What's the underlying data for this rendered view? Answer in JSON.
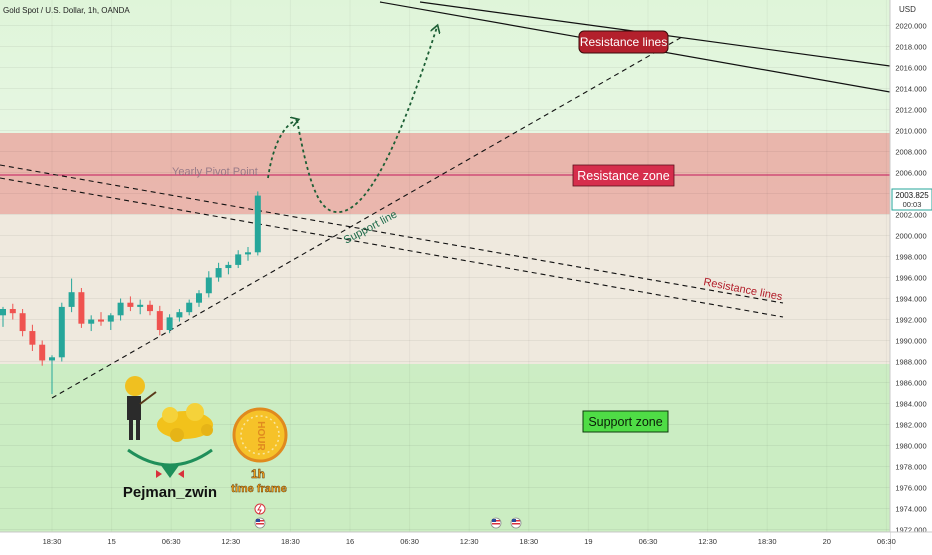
{
  "header": {
    "symbol_title": "Gold Spot / U.S. Dollar, 1h, OANDA",
    "currency": "USD"
  },
  "price_label": {
    "price": "2003.825",
    "countdown": "00:03"
  },
  "colors": {
    "bull": "#26a69a",
    "bear": "#ef5350",
    "resistance_zone": "#e9a49c",
    "support_zone": "#c9ecc0",
    "pivot_line": "#c2185b",
    "resistance_badge": "#b3202c",
    "support_badge": "#4fdc46",
    "forecast_arrow": "#1b5e34"
  },
  "chart_data": {
    "type": "candlestick",
    "title": "Gold Spot / U.S. Dollar, 1h, OANDA",
    "y_unit": "USD",
    "ylim": [
      1972,
      2022
    ],
    "y_ticks": [
      2020,
      2018,
      2016,
      2014,
      2012,
      2010,
      2008,
      2006,
      2004,
      2002,
      2000,
      1998,
      1996,
      1994,
      1992,
      1990,
      1988,
      1986,
      1984,
      1982,
      1980,
      1978,
      1976,
      1974,
      1972
    ],
    "y_tick_labels": [
      "2020.000",
      "2018.000",
      "2016.000",
      "2014.000",
      "2012.000",
      "2010.000",
      "2008.000",
      "2006.000",
      "2004.000",
      "2002.000",
      "2000.000",
      "1998.000",
      "1996.000",
      "1994.000",
      "1992.000",
      "1990.000",
      "1988.000",
      "1986.000",
      "1984.000",
      "1982.000",
      "1980.000",
      "1978.000",
      "1976.000",
      "1974.000",
      "1972.000"
    ],
    "x_ticks": [
      "18:30",
      "15",
      "06:30",
      "12:30",
      "18:30",
      "16",
      "06:30",
      "12:30",
      "18:30",
      "19",
      "06:30",
      "12:30",
      "18:30",
      "20",
      "06:30"
    ],
    "grid": true,
    "last_price": 2003.825,
    "candles": [
      {
        "o": 1992.4,
        "h": 1993.2,
        "l": 1991.3,
        "c": 1993.0
      },
      {
        "o": 1993.0,
        "h": 1993.5,
        "l": 1992.0,
        "c": 1992.6
      },
      {
        "o": 1992.6,
        "h": 1993.0,
        "l": 1990.4,
        "c": 1990.9
      },
      {
        "o": 1990.9,
        "h": 1991.5,
        "l": 1989.0,
        "c": 1989.6
      },
      {
        "o": 1989.6,
        "h": 1990.0,
        "l": 1987.6,
        "c": 1988.1
      },
      {
        "o": 1988.1,
        "h": 1988.6,
        "l": 1984.9,
        "c": 1988.4
      },
      {
        "o": 1988.4,
        "h": 1993.6,
        "l": 1988.0,
        "c": 1993.2
      },
      {
        "o": 1993.2,
        "h": 1995.9,
        "l": 1992.7,
        "c": 1994.6
      },
      {
        "o": 1994.6,
        "h": 1995.0,
        "l": 1991.2,
        "c": 1991.6
      },
      {
        "o": 1991.6,
        "h": 1992.4,
        "l": 1990.9,
        "c": 1992.0
      },
      {
        "o": 1992.0,
        "h": 1992.7,
        "l": 1991.4,
        "c": 1991.8
      },
      {
        "o": 1991.8,
        "h": 1992.6,
        "l": 1991.0,
        "c": 1992.4
      },
      {
        "o": 1992.4,
        "h": 1994.0,
        "l": 1991.9,
        "c": 1993.6
      },
      {
        "o": 1993.6,
        "h": 1994.2,
        "l": 1992.8,
        "c": 1993.2
      },
      {
        "o": 1993.2,
        "h": 1993.9,
        "l": 1992.5,
        "c": 1993.4
      },
      {
        "o": 1993.4,
        "h": 1993.8,
        "l": 1992.4,
        "c": 1992.8
      },
      {
        "o": 1992.8,
        "h": 1993.3,
        "l": 1990.5,
        "c": 1991.0
      },
      {
        "o": 1991.0,
        "h": 1992.5,
        "l": 1990.7,
        "c": 1992.2
      },
      {
        "o": 1992.2,
        "h": 1993.0,
        "l": 1991.8,
        "c": 1992.7
      },
      {
        "o": 1992.7,
        "h": 1993.9,
        "l": 1992.4,
        "c": 1993.6
      },
      {
        "o": 1993.6,
        "h": 1994.8,
        "l": 1993.2,
        "c": 1994.5
      },
      {
        "o": 1994.5,
        "h": 1996.6,
        "l": 1994.1,
        "c": 1996.0
      },
      {
        "o": 1996.0,
        "h": 1997.4,
        "l": 1995.6,
        "c": 1996.9
      },
      {
        "o": 1996.9,
        "h": 1997.5,
        "l": 1996.3,
        "c": 1997.2
      },
      {
        "o": 1997.2,
        "h": 1998.6,
        "l": 1996.9,
        "c": 1998.2
      },
      {
        "o": 1998.2,
        "h": 1998.9,
        "l": 1997.6,
        "c": 1998.4
      },
      {
        "o": 1998.4,
        "h": 2004.2,
        "l": 1998.1,
        "c": 2003.8
      }
    ]
  },
  "annotations": {
    "pivot_label": "Yearly Pivot Point",
    "resistance_zone_label": "Resistance zone",
    "support_zone_label": "Support zone",
    "resistance_lines_badge": "Resistance lines",
    "resistance_lines_text": "Resistance lines",
    "support_line_text": "Support line"
  },
  "logo": {
    "author": "Pejman_zwin",
    "tf_line1": "1h",
    "tf_line2": "time frame",
    "badge_word": "HOUR"
  }
}
